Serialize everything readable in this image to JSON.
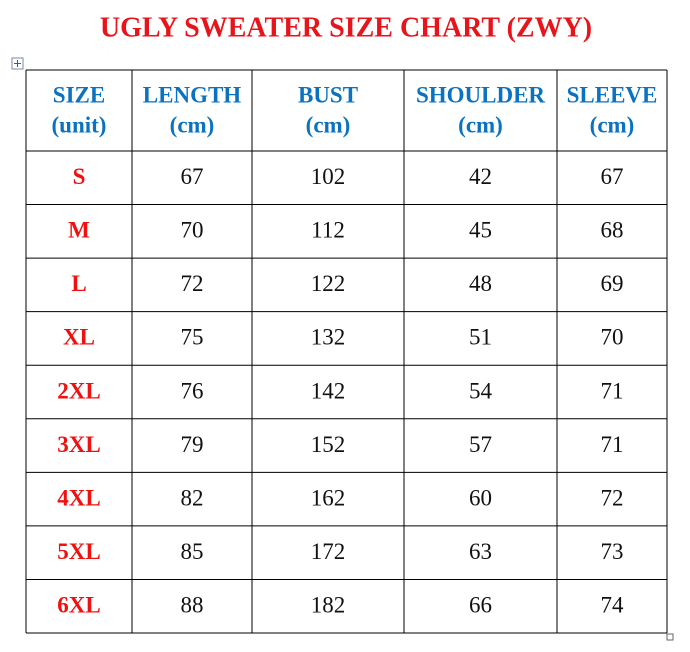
{
  "title": "UGLY SWEATER SIZE CHART (ZWY)",
  "table": {
    "header": [
      [
        "SIZE",
        "(unit)"
      ],
      [
        "LENGTH",
        "(cm)"
      ],
      [
        "BUST",
        "(cm)"
      ],
      [
        "SHOULDER",
        "(cm)"
      ],
      [
        "SLEEVE",
        "(cm)"
      ]
    ],
    "rows": [
      [
        "S",
        67,
        102,
        42,
        67
      ],
      [
        "M",
        70,
        112,
        45,
        68
      ],
      [
        "L",
        72,
        122,
        48,
        69
      ],
      [
        "XL",
        75,
        132,
        51,
        70
      ],
      [
        "2XL",
        76,
        142,
        54,
        71
      ],
      [
        "3XL",
        79,
        152,
        57,
        71
      ],
      [
        "4XL",
        82,
        162,
        60,
        72
      ],
      [
        "5XL",
        85,
        172,
        63,
        73
      ],
      [
        "6XL",
        88,
        182,
        66,
        74
      ]
    ]
  }
}
